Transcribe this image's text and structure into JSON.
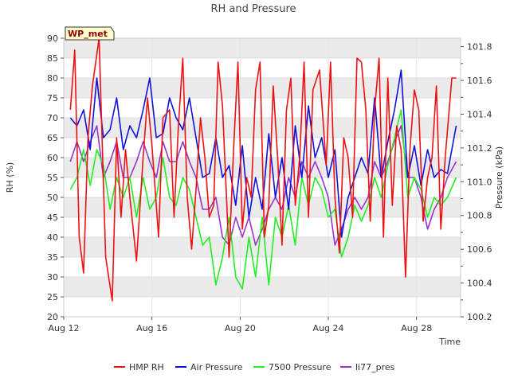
{
  "chart_data": {
    "type": "line",
    "title": "RH and Pressure",
    "xlabel": "Time",
    "ylabel_left": "RH (%)",
    "ylabel_right": "Pressure (kPa)",
    "badge": "WP_met",
    "x_ticks": [
      "Aug 12",
      "Aug 16",
      "Aug 20",
      "Aug 24",
      "Aug 28"
    ],
    "x_tick_days": [
      12,
      16,
      20,
      24,
      28
    ],
    "xlim_days": [
      12,
      30
    ],
    "y_left_ticks": [
      20,
      25,
      30,
      35,
      40,
      45,
      50,
      55,
      60,
      65,
      70,
      75,
      80,
      85,
      90
    ],
    "ylim_left": [
      20,
      90
    ],
    "y_right_ticks": [
      100.2,
      100.4,
      100.6,
      100.8,
      101.0,
      101.2,
      101.4,
      101.6,
      101.8
    ],
    "y_right_labels": [
      "100.2",
      "100.4",
      "100.6",
      "100.8",
      "101.0",
      "101.2",
      "101.4",
      "101.6",
      "101.8"
    ],
    "ylim_right": [
      100.2,
      101.85
    ],
    "legend_position": "bottom",
    "colors": {
      "HMP RH": "#ee1111",
      "Air Pressure": "#1111dd",
      "7500 Pressure": "#22ee22",
      "li77_pres": "#9933cc",
      "band": "#ebebeb"
    },
    "series": [
      {
        "name": "HMP RH",
        "axis": "left",
        "color": "#ee1111",
        "x": [
          12.3,
          12.5,
          12.7,
          12.9,
          13.1,
          13.3,
          13.6,
          13.9,
          14.2,
          14.4,
          14.6,
          14.8,
          15.0,
          15.3,
          15.6,
          15.8,
          16.0,
          16.3,
          16.5,
          16.8,
          17.0,
          17.2,
          17.4,
          17.6,
          17.8,
          18.0,
          18.2,
          18.4,
          18.6,
          18.8,
          19.0,
          19.2,
          19.5,
          19.7,
          19.9,
          20.1,
          20.3,
          20.5,
          20.7,
          20.9,
          21.1,
          21.3,
          21.5,
          21.7,
          21.9,
          22.1,
          22.3,
          22.5,
          22.7,
          22.9,
          23.1,
          23.3,
          23.6,
          23.9,
          24.1,
          24.3,
          24.5,
          24.7,
          24.9,
          25.1,
          25.3,
          25.5,
          25.7,
          25.9,
          26.1,
          26.3,
          26.5,
          26.7,
          26.9,
          27.1,
          27.3,
          27.5,
          27.7,
          27.9,
          28.1,
          28.3,
          28.5,
          28.7,
          28.9,
          29.1,
          29.3,
          29.6,
          29.8
        ],
        "values": [
          72,
          87,
          40,
          31,
          65,
          78,
          90,
          35,
          24,
          65,
          45,
          62,
          50,
          34,
          60,
          75,
          63,
          40,
          70,
          72,
          45,
          68,
          85,
          50,
          37,
          52,
          70,
          60,
          45,
          48,
          84,
          73,
          35,
          62,
          84,
          42,
          55,
          50,
          77,
          84,
          40,
          48,
          78,
          60,
          38,
          72,
          80,
          48,
          60,
          84,
          45,
          77,
          82,
          58,
          84,
          50,
          36,
          65,
          60,
          45,
          85,
          84,
          72,
          44,
          72,
          85,
          40,
          80,
          48,
          68,
          62,
          30,
          62,
          77,
          72,
          44,
          55,
          60,
          78,
          42,
          60,
          80,
          80
        ]
      },
      {
        "name": "Air Pressure",
        "axis": "left",
        "color": "#1111dd",
        "x": [
          12.3,
          12.6,
          12.9,
          13.2,
          13.5,
          13.8,
          14.1,
          14.4,
          14.7,
          15.0,
          15.3,
          15.6,
          15.9,
          16.2,
          16.5,
          16.8,
          17.1,
          17.4,
          17.7,
          18.0,
          18.3,
          18.6,
          18.9,
          19.2,
          19.5,
          19.8,
          20.1,
          20.4,
          20.7,
          21.0,
          21.3,
          21.6,
          21.9,
          22.2,
          22.5,
          22.8,
          23.1,
          23.4,
          23.7,
          24.0,
          24.3,
          24.6,
          24.9,
          25.2,
          25.5,
          25.8,
          26.1,
          26.4,
          26.7,
          27.0,
          27.3,
          27.6,
          27.9,
          28.2,
          28.5,
          28.8,
          29.1,
          29.4,
          29.8
        ],
        "values": [
          70,
          68,
          72,
          62,
          80,
          65,
          67,
          75,
          62,
          68,
          65,
          72,
          80,
          65,
          66,
          75,
          70,
          67,
          75,
          65,
          55,
          56,
          65,
          55,
          58,
          48,
          63,
          45,
          55,
          47,
          66,
          50,
          60,
          47,
          68,
          55,
          73,
          60,
          65,
          55,
          62,
          40,
          50,
          55,
          60,
          56,
          75,
          55,
          64,
          72,
          82,
          55,
          63,
          53,
          62,
          55,
          57,
          56,
          68
        ]
      },
      {
        "name": "7500 Pressure",
        "axis": "left",
        "color": "#22ee22",
        "x": [
          12.3,
          12.6,
          12.9,
          13.2,
          13.5,
          13.8,
          14.1,
          14.4,
          14.7,
          15.0,
          15.3,
          15.6,
          15.9,
          16.2,
          16.5,
          16.8,
          17.1,
          17.4,
          17.7,
          18.0,
          18.3,
          18.6,
          18.9,
          19.2,
          19.5,
          19.8,
          20.1,
          20.4,
          20.7,
          21.0,
          21.3,
          21.6,
          21.9,
          22.2,
          22.5,
          22.8,
          23.1,
          23.4,
          23.7,
          24.0,
          24.3,
          24.6,
          24.9,
          25.2,
          25.5,
          25.8,
          26.1,
          26.4,
          26.7,
          27.0,
          27.3,
          27.6,
          27.9,
          28.2,
          28.5,
          28.8,
          29.1,
          29.4,
          29.8
        ],
        "values": [
          52,
          55,
          62,
          53,
          62,
          58,
          47,
          55,
          50,
          55,
          45,
          55,
          47,
          50,
          60,
          50,
          48,
          55,
          52,
          45,
          38,
          40,
          28,
          35,
          45,
          30,
          27,
          40,
          30,
          45,
          28,
          45,
          40,
          48,
          38,
          55,
          48,
          55,
          52,
          45,
          47,
          35,
          40,
          48,
          44,
          48,
          55,
          50,
          58,
          65,
          72,
          50,
          55,
          52,
          45,
          50,
          48,
          50,
          55
        ]
      },
      {
        "name": "li77_pres",
        "axis": "left",
        "color": "#9933cc",
        "x": [
          12.3,
          12.6,
          12.9,
          13.2,
          13.5,
          13.8,
          14.1,
          14.4,
          14.7,
          15.0,
          15.3,
          15.6,
          15.9,
          16.2,
          16.5,
          16.8,
          17.1,
          17.4,
          17.7,
          18.0,
          18.3,
          18.6,
          18.9,
          19.2,
          19.5,
          19.8,
          20.1,
          20.4,
          20.7,
          21.0,
          21.3,
          21.6,
          21.9,
          22.2,
          22.5,
          22.8,
          23.1,
          23.4,
          23.7,
          24.0,
          24.3,
          24.6,
          24.9,
          25.2,
          25.5,
          25.8,
          26.1,
          26.4,
          26.7,
          27.0,
          27.3,
          27.6,
          27.9,
          28.2,
          28.5,
          28.8,
          29.1,
          29.4,
          29.8
        ],
        "values": [
          59,
          64,
          59,
          64,
          68,
          55,
          59,
          64,
          55,
          55,
          59,
          64,
          59,
          55,
          64,
          59,
          59,
          64,
          59,
          55,
          47,
          47,
          50,
          40,
          38,
          45,
          40,
          45,
          38,
          42,
          47,
          50,
          47,
          55,
          50,
          59,
          55,
          59,
          55,
          50,
          38,
          42,
          47,
          50,
          47,
          50,
          59,
          55,
          59,
          64,
          68,
          55,
          55,
          50,
          42,
          47,
          50,
          55,
          59
        ]
      }
    ]
  }
}
